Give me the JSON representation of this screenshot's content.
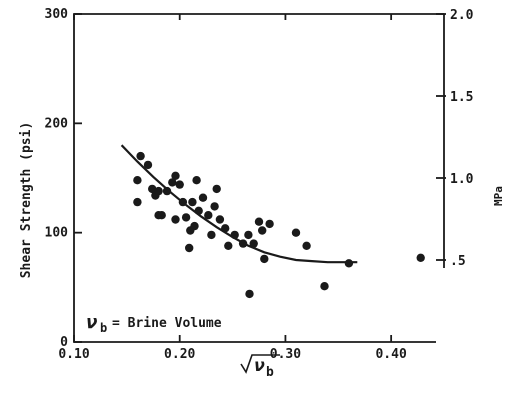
{
  "chart_data": {
    "type": "scatter",
    "xlabel": "√ν_b",
    "ylabel": "Shear Strength (psi)",
    "y2label": "MPa",
    "annotation": "ν_b = Brine Volume",
    "xlim": [
      0.1,
      0.45
    ],
    "ylim": [
      0,
      300
    ],
    "y2lim": [
      0,
      2.0
    ],
    "x_ticks": [
      0.1,
      0.2,
      0.3,
      0.4
    ],
    "x_tick_labels": [
      "0.10",
      "0.20",
      "0.30",
      "0.40"
    ],
    "y_ticks": [
      0,
      100,
      200,
      300
    ],
    "y_tick_labels": [
      "0",
      "100",
      "200",
      "300"
    ],
    "y2_ticks": [
      0.5,
      1.0,
      1.5,
      2.0
    ],
    "y2_tick_labels": [
      ".5",
      "1.0",
      "1.5",
      "2.0"
    ],
    "grid": false,
    "points": [
      {
        "x": 0.16,
        "y": 148
      },
      {
        "x": 0.16,
        "y": 128
      },
      {
        "x": 0.163,
        "y": 170
      },
      {
        "x": 0.17,
        "y": 162
      },
      {
        "x": 0.174,
        "y": 140
      },
      {
        "x": 0.177,
        "y": 134
      },
      {
        "x": 0.18,
        "y": 138
      },
      {
        "x": 0.18,
        "y": 116
      },
      {
        "x": 0.183,
        "y": 116
      },
      {
        "x": 0.188,
        "y": 138
      },
      {
        "x": 0.193,
        "y": 146
      },
      {
        "x": 0.196,
        "y": 152
      },
      {
        "x": 0.196,
        "y": 112
      },
      {
        "x": 0.2,
        "y": 144
      },
      {
        "x": 0.203,
        "y": 128
      },
      {
        "x": 0.206,
        "y": 114
      },
      {
        "x": 0.209,
        "y": 86
      },
      {
        "x": 0.21,
        "y": 102
      },
      {
        "x": 0.212,
        "y": 128
      },
      {
        "x": 0.214,
        "y": 106
      },
      {
        "x": 0.216,
        "y": 148
      },
      {
        "x": 0.218,
        "y": 120
      },
      {
        "x": 0.222,
        "y": 132
      },
      {
        "x": 0.227,
        "y": 116
      },
      {
        "x": 0.23,
        "y": 98
      },
      {
        "x": 0.233,
        "y": 124
      },
      {
        "x": 0.235,
        "y": 140
      },
      {
        "x": 0.238,
        "y": 112
      },
      {
        "x": 0.243,
        "y": 104
      },
      {
        "x": 0.246,
        "y": 88
      },
      {
        "x": 0.252,
        "y": 98
      },
      {
        "x": 0.26,
        "y": 90
      },
      {
        "x": 0.265,
        "y": 98
      },
      {
        "x": 0.266,
        "y": 44
      },
      {
        "x": 0.27,
        "y": 90
      },
      {
        "x": 0.275,
        "y": 110
      },
      {
        "x": 0.278,
        "y": 102
      },
      {
        "x": 0.28,
        "y": 76
      },
      {
        "x": 0.285,
        "y": 108
      },
      {
        "x": 0.31,
        "y": 100
      },
      {
        "x": 0.32,
        "y": 88
      },
      {
        "x": 0.337,
        "y": 51
      },
      {
        "x": 0.36,
        "y": 72
      },
      {
        "x": 0.428,
        "y": 77
      }
    ],
    "fit_curve": [
      {
        "x": 0.145,
        "y": 180
      },
      {
        "x": 0.16,
        "y": 165
      },
      {
        "x": 0.175,
        "y": 151
      },
      {
        "x": 0.19,
        "y": 138
      },
      {
        "x": 0.205,
        "y": 126
      },
      {
        "x": 0.22,
        "y": 115
      },
      {
        "x": 0.235,
        "y": 105
      },
      {
        "x": 0.25,
        "y": 96
      },
      {
        "x": 0.265,
        "y": 88
      },
      {
        "x": 0.28,
        "y": 82
      },
      {
        "x": 0.295,
        "y": 78
      },
      {
        "x": 0.31,
        "y": 75
      },
      {
        "x": 0.325,
        "y": 74
      },
      {
        "x": 0.34,
        "y": 73
      },
      {
        "x": 0.355,
        "y": 73
      },
      {
        "x": 0.368,
        "y": 73
      }
    ]
  }
}
